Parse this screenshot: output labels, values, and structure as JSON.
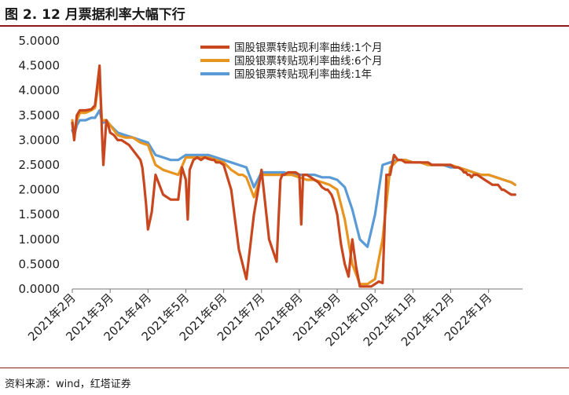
{
  "header": {
    "title": "图 2. 12 月票据利率大幅下行"
  },
  "footer": {
    "source": "资料来源：wind，红塔证券"
  },
  "chart_data": {
    "type": "line",
    "title": "",
    "xlabel": "",
    "ylabel": "",
    "ylim": [
      0,
      5
    ],
    "y_ticks": [
      "0.0000",
      "0.5000",
      "1.0000",
      "1.5000",
      "2.0000",
      "2.5000",
      "3.0000",
      "3.5000",
      "4.0000",
      "4.5000",
      "5.0000"
    ],
    "x_ticks": [
      "2021年2月",
      "2021年3月",
      "2021年4月",
      "2021年5月",
      "2021年6月",
      "2021年7月",
      "2021年8月",
      "2021年9月",
      "2021年10月",
      "2021年11月",
      "2021年12月",
      "2022年1月"
    ],
    "x_range": [
      0,
      11.9
    ],
    "legend": {
      "position": "top-right"
    },
    "series": [
      {
        "name": "国股银票转贴现利率曲线:1个月",
        "color": "#c9471f",
        "x": [
          0,
          0.05,
          0.12,
          0.2,
          0.35,
          0.5,
          0.6,
          0.72,
          0.78,
          0.82,
          0.9,
          0.95,
          1.0,
          1.1,
          1.2,
          1.3,
          1.5,
          1.7,
          1.8,
          1.85,
          1.9,
          1.95,
          2.0,
          2.1,
          2.2,
          2.4,
          2.6,
          2.8,
          2.9,
          3.0,
          3.05,
          3.1,
          3.2,
          3.3,
          3.4,
          3.5,
          3.6,
          3.7,
          3.75,
          3.8,
          3.9,
          4.0,
          4.2,
          4.4,
          4.6,
          4.8,
          5.0,
          5.2,
          5.4,
          5.5,
          5.55,
          5.6,
          5.7,
          5.8,
          5.9,
          6.0,
          6.05,
          6.1,
          6.2,
          6.3,
          6.4,
          6.5,
          6.6,
          6.7,
          6.75,
          6.8,
          6.85,
          6.9,
          7.0,
          7.05,
          7.1,
          7.2,
          7.3,
          7.4,
          7.5,
          7.6,
          7.7,
          7.8,
          7.9,
          8.0,
          8.1,
          8.2,
          8.3,
          8.4,
          8.5,
          8.55,
          8.6,
          8.7,
          8.8,
          9.0,
          9.2,
          9.4,
          9.5,
          9.6,
          9.8,
          10.0,
          10.1,
          10.2,
          10.3,
          10.35,
          10.4,
          10.45,
          10.5,
          10.55,
          10.6,
          10.7,
          10.8,
          10.9,
          11.0,
          11.1,
          11.2,
          11.25,
          11.3,
          11.35,
          11.4,
          11.5,
          11.6,
          11.7
        ],
        "values": [
          3.35,
          3.0,
          3.5,
          3.6,
          3.6,
          3.62,
          3.7,
          4.5,
          3.2,
          2.5,
          3.4,
          3.3,
          3.15,
          3.1,
          3.0,
          3.0,
          2.9,
          2.7,
          2.6,
          2.45,
          2.1,
          1.7,
          1.2,
          1.55,
          2.3,
          1.9,
          1.8,
          1.8,
          2.45,
          2.2,
          1.4,
          2.4,
          2.6,
          2.65,
          2.6,
          2.65,
          2.62,
          2.6,
          2.6,
          2.55,
          2.55,
          2.5,
          2.0,
          0.8,
          0.2,
          1.5,
          2.4,
          1.0,
          0.55,
          2.2,
          2.3,
          2.3,
          2.35,
          2.35,
          2.35,
          2.3,
          1.3,
          2.3,
          2.3,
          2.25,
          2.2,
          2.15,
          2.05,
          2.0,
          2.0,
          1.95,
          1.9,
          1.8,
          1.5,
          1.2,
          0.9,
          0.5,
          0.25,
          1.0,
          0.45,
          0.05,
          0.05,
          0.05,
          0.05,
          0.1,
          0.15,
          0.12,
          2.3,
          2.3,
          2.7,
          2.65,
          2.6,
          2.6,
          2.55,
          2.55,
          2.55,
          2.55,
          2.5,
          2.5,
          2.5,
          2.5,
          2.45,
          2.45,
          2.4,
          2.35,
          2.35,
          2.3,
          2.3,
          2.25,
          2.3,
          2.3,
          2.25,
          2.2,
          2.15,
          2.1,
          2.1,
          2.1,
          2.05,
          2.0,
          2.0,
          1.95,
          1.9,
          1.9
        ]
      },
      {
        "name": "国股银票转贴现利率曲线:6个月",
        "color": "#e89420",
        "x": [
          0,
          0.05,
          0.12,
          0.2,
          0.35,
          0.5,
          0.6,
          0.72,
          0.78,
          0.82,
          0.9,
          1.0,
          1.2,
          1.4,
          1.6,
          1.8,
          2.0,
          2.2,
          2.4,
          2.6,
          2.8,
          3.0,
          3.2,
          3.4,
          3.6,
          3.8,
          4.0,
          4.2,
          4.4,
          4.5,
          4.6,
          4.8,
          5.0,
          5.2,
          5.4,
          5.6,
          5.8,
          6.0,
          6.2,
          6.4,
          6.6,
          6.8,
          7.0,
          7.2,
          7.4,
          7.6,
          7.8,
          8.0,
          8.2,
          8.4,
          8.6,
          8.8,
          9.0,
          9.2,
          9.4,
          9.6,
          9.8,
          10.0,
          10.2,
          10.4,
          10.6,
          10.8,
          11.0,
          11.2,
          11.4,
          11.6,
          11.7
        ],
        "values": [
          3.4,
          3.1,
          3.4,
          3.55,
          3.55,
          3.6,
          3.65,
          4.3,
          3.4,
          3.4,
          3.4,
          3.3,
          3.1,
          3.05,
          3.05,
          2.95,
          2.9,
          2.5,
          2.4,
          2.35,
          2.3,
          2.65,
          2.65,
          2.65,
          2.65,
          2.6,
          2.55,
          2.4,
          2.3,
          2.3,
          2.25,
          1.85,
          2.3,
          2.3,
          2.3,
          2.3,
          2.3,
          2.25,
          2.2,
          2.2,
          2.15,
          2.1,
          2.0,
          1.4,
          0.5,
          0.1,
          0.1,
          0.2,
          1.0,
          2.45,
          2.6,
          2.6,
          2.55,
          2.55,
          2.5,
          2.5,
          2.5,
          2.5,
          2.45,
          2.4,
          2.35,
          2.3,
          2.3,
          2.25,
          2.2,
          2.15,
          2.1
        ]
      },
      {
        "name": "国股银票转贴现利率曲线:1年",
        "color": "#5b9bd5",
        "x": [
          0,
          0.05,
          0.12,
          0.2,
          0.35,
          0.5,
          0.6,
          0.72,
          0.78,
          0.82,
          0.9,
          1.0,
          1.2,
          1.4,
          1.6,
          1.8,
          2.0,
          2.2,
          2.4,
          2.6,
          2.8,
          3.0,
          3.2,
          3.4,
          3.6,
          3.8,
          4.0,
          4.2,
          4.4,
          4.6,
          4.8,
          5.0,
          5.2,
          5.4,
          5.6,
          5.8,
          6.0,
          6.2,
          6.4,
          6.6,
          6.8,
          7.0,
          7.2,
          7.4,
          7.6,
          7.8,
          8.0,
          8.2,
          8.4,
          8.6,
          8.8,
          9.0,
          9.2,
          9.4,
          9.6,
          9.8,
          10.0,
          10.2,
          10.4,
          10.6,
          10.8,
          11.0,
          11.2,
          11.4,
          11.6,
          11.7
        ],
        "values": [
          3.2,
          3.1,
          3.3,
          3.4,
          3.4,
          3.45,
          3.45,
          3.6,
          3.4,
          3.35,
          3.4,
          3.3,
          3.15,
          3.1,
          3.05,
          3.0,
          2.95,
          2.7,
          2.65,
          2.6,
          2.6,
          2.7,
          2.7,
          2.7,
          2.7,
          2.65,
          2.6,
          2.55,
          2.5,
          2.45,
          2.05,
          2.35,
          2.35,
          2.35,
          2.35,
          2.3,
          2.3,
          2.3,
          2.3,
          2.25,
          2.25,
          2.2,
          2.05,
          1.6,
          1.0,
          0.85,
          1.5,
          2.5,
          2.55,
          2.6,
          2.6,
          2.55,
          2.55,
          2.5,
          2.5,
          2.5,
          2.45,
          2.45,
          2.4,
          2.35,
          2.3,
          2.3,
          2.25,
          2.2,
          2.15,
          2.1
        ]
      }
    ]
  }
}
